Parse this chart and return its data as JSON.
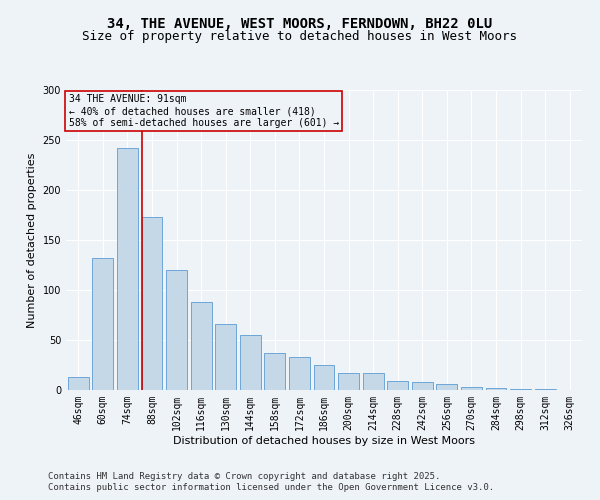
{
  "title_line1": "34, THE AVENUE, WEST MOORS, FERNDOWN, BH22 0LU",
  "title_line2": "Size of property relative to detached houses in West Moors",
  "xlabel": "Distribution of detached houses by size in West Moors",
  "ylabel": "Number of detached properties",
  "categories": [
    "46sqm",
    "60sqm",
    "74sqm",
    "88sqm",
    "102sqm",
    "116sqm",
    "130sqm",
    "144sqm",
    "158sqm",
    "172sqm",
    "186sqm",
    "200sqm",
    "214sqm",
    "228sqm",
    "242sqm",
    "256sqm",
    "270sqm",
    "284sqm",
    "298sqm",
    "312sqm",
    "326sqm"
  ],
  "values": [
    13,
    132,
    242,
    173,
    120,
    88,
    66,
    55,
    37,
    33,
    25,
    17,
    17,
    9,
    8,
    6,
    3,
    2,
    1,
    1,
    0
  ],
  "bar_color": "#c5d8e8",
  "bar_edge_color": "#5b9bd5",
  "vline_index": 3,
  "vline_color": "#cc0000",
  "annotation_text": "34 THE AVENUE: 91sqm\n← 40% of detached houses are smaller (418)\n58% of semi-detached houses are larger (601) →",
  "annotation_box_color": "#cc0000",
  "background_color": "#eef3f8",
  "grid_color": "#ffffff",
  "ylim": [
    0,
    300
  ],
  "yticks": [
    0,
    50,
    100,
    150,
    200,
    250,
    300
  ],
  "footer_line1": "Contains HM Land Registry data © Crown copyright and database right 2025.",
  "footer_line2": "Contains public sector information licensed under the Open Government Licence v3.0.",
  "title_fontsize": 10,
  "subtitle_fontsize": 9,
  "axis_label_fontsize": 8,
  "tick_fontsize": 7,
  "annotation_fontsize": 7,
  "footer_fontsize": 6.5
}
